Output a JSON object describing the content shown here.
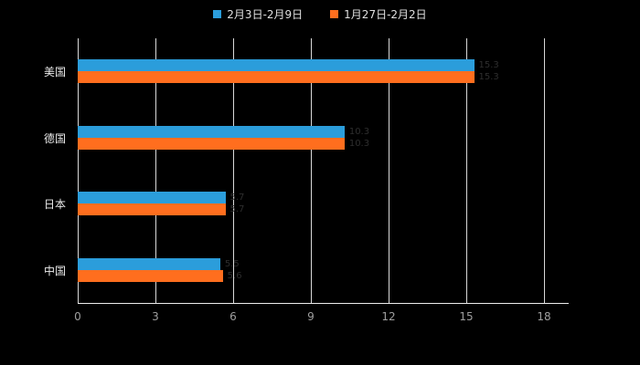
{
  "legend": {
    "items": [
      {
        "label": "2月3日-2月9日",
        "color": "#2b9ddb"
      },
      {
        "label": "1月27日-2月2日",
        "color": "#ff6e1e"
      }
    ]
  },
  "colors": {
    "background": "#000000",
    "gridline": "#d9d9d9",
    "axis": "#ededed",
    "tick_text": "#9e9e9e",
    "category_text": "#ececec",
    "series1": "#2b9ddb",
    "series2": "#ff6e1e"
  },
  "chart_data": {
    "type": "bar",
    "orientation": "horizontal",
    "title": "",
    "xlabel": "",
    "ylabel": "",
    "categories": [
      "美国",
      "德国",
      "日本",
      "中国"
    ],
    "series": [
      {
        "name": "2月3日-2月9日",
        "color": "#2b9ddb",
        "values": [
          15.3,
          10.3,
          5.7,
          5.5
        ]
      },
      {
        "name": "1月27日-2月2日",
        "color": "#ff6e1e",
        "values": [
          15.3,
          10.3,
          5.7,
          5.6
        ]
      }
    ],
    "xlim": [
      0,
      18
    ],
    "xticks": [
      0,
      3,
      6,
      9,
      12,
      15,
      18
    ],
    "grid": true,
    "legend_position": "top"
  }
}
